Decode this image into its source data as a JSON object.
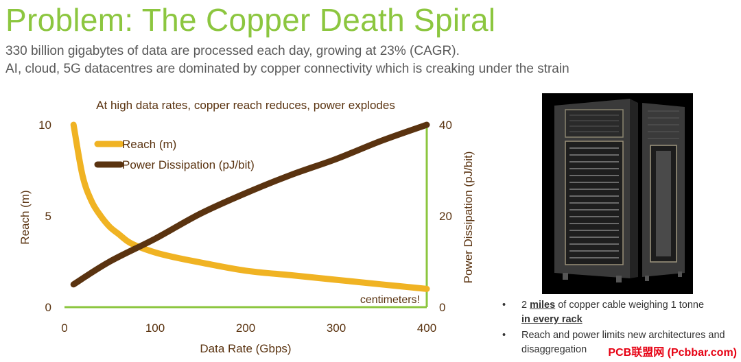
{
  "header": {
    "title": "Problem: The Copper Death Spiral",
    "subtitle_line1": "330 billion gigabytes of data are processed each day, growing at 23% (CAGR).",
    "subtitle_line2": "AI, cloud, 5G datacentres are dominated by copper connectivity which is creaking under the strain"
  },
  "colors": {
    "title": "#8cc63f",
    "reach": "#f0b323",
    "power": "#5a3310",
    "axis_right": "#8cc63f",
    "chart_text": "#5a3310"
  },
  "chart_data": {
    "type": "line",
    "title": "At high data rates, copper reach reduces, power explodes",
    "xlabel": "Data Rate (Gbps)",
    "ylabel_left": "Reach (m)",
    "ylabel_right": "Power Dissipation (pJ/bit)",
    "xlim": [
      0,
      400
    ],
    "ylim_left": [
      0,
      10
    ],
    "ylim_right": [
      0,
      40
    ],
    "x_ticks": [
      "0",
      "100",
      "200",
      "300",
      "400"
    ],
    "y_ticks_left": [
      "0",
      "5",
      "10"
    ],
    "y_ticks_right": [
      "0",
      "20",
      "40"
    ],
    "legend_position": "top-left",
    "annotation": "centimeters!",
    "series": [
      {
        "name": "Reach (m)",
        "axis": "left",
        "x": [
          10,
          20,
          30,
          40,
          50,
          60,
          70,
          80,
          100,
          120,
          150,
          200,
          250,
          300,
          350,
          400
        ],
        "values": [
          10,
          7.2,
          5.8,
          5.0,
          4.4,
          4.0,
          3.6,
          3.35,
          3.0,
          2.75,
          2.45,
          2.0,
          1.75,
          1.5,
          1.25,
          1.0
        ]
      },
      {
        "name": "Power Dissipation (pJ/bit)",
        "axis": "right",
        "x": [
          10,
          50,
          100,
          150,
          200,
          250,
          300,
          350,
          400
        ],
        "values": [
          5,
          10,
          15,
          20.5,
          25,
          29,
          32.5,
          36.5,
          40
        ]
      }
    ]
  },
  "image": {
    "icon": "server-rack-photo"
  },
  "bullets": [
    {
      "marker": "•",
      "parts": [
        "2 ",
        "miles",
        " of copper cable weighing 1 tonne ",
        "in every rack"
      ]
    },
    {
      "marker": "•",
      "text": "Reach and power limits new architectures and disaggregation"
    }
  ],
  "watermark": "PCB联盟网 (Pcbbar.com)"
}
